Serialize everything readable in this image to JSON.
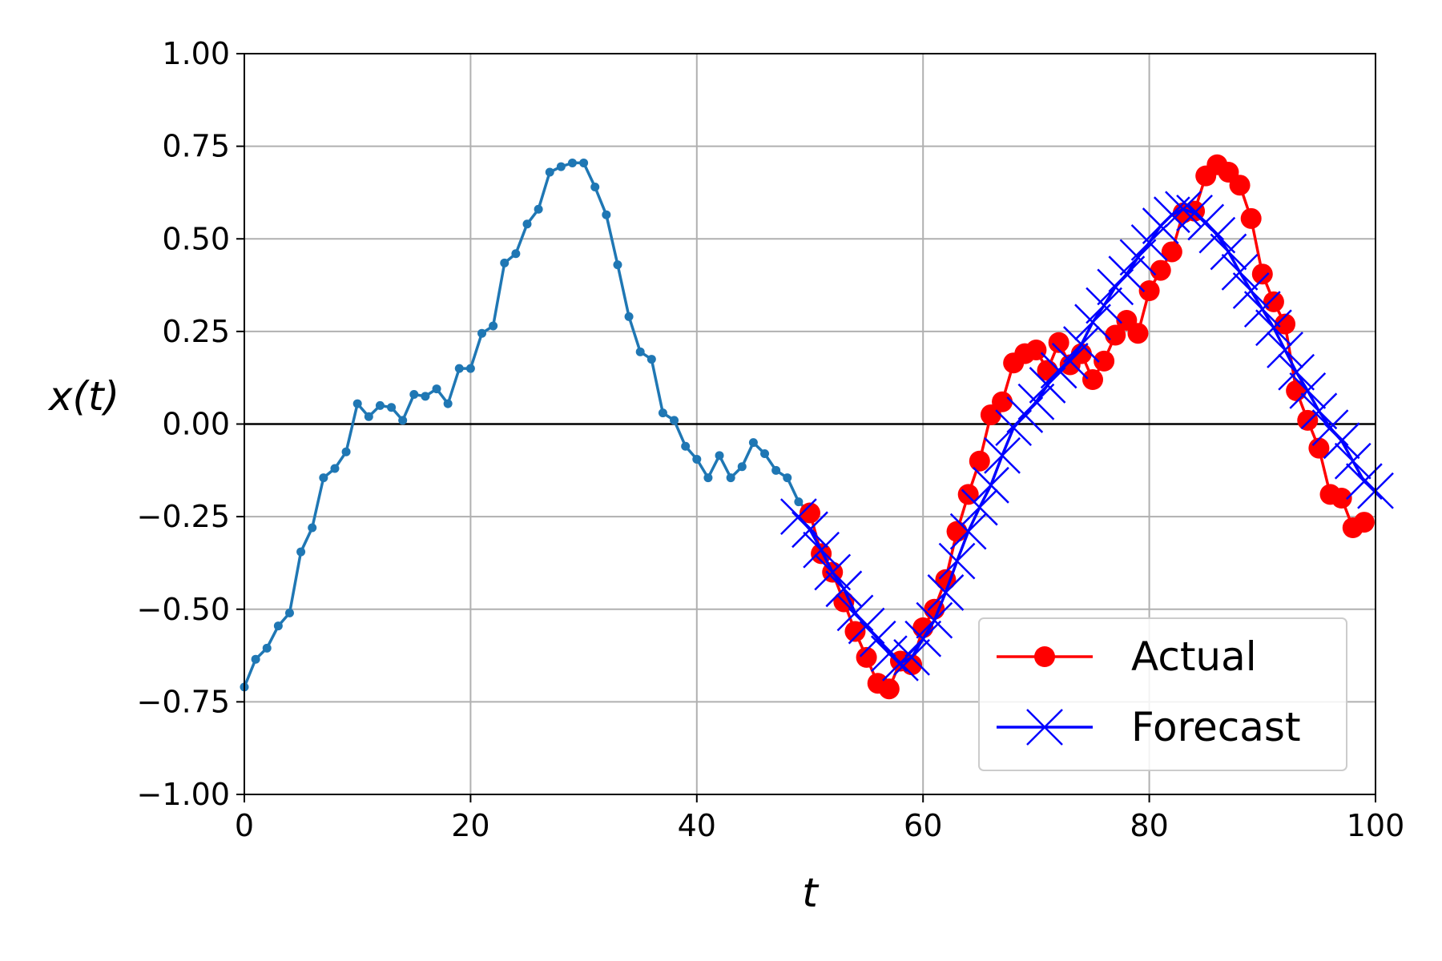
{
  "chart_data": {
    "type": "line",
    "title": "",
    "xlabel": "t",
    "ylabel": "x(t)",
    "xlim": [
      0,
      100
    ],
    "ylim": [
      -1,
      1
    ],
    "x_ticks": [
      0,
      20,
      40,
      60,
      80,
      100
    ],
    "x_tick_labels": [
      "0",
      "20",
      "40",
      "60",
      "80",
      "100"
    ],
    "y_ticks": [
      1,
      0.75,
      0.5,
      0.25,
      0,
      -0.25,
      -0.5,
      -0.75,
      -1
    ],
    "y_tick_labels": [
      "1.00",
      "0.75",
      "0.50",
      "0.25",
      "0.00",
      "−0.25",
      "−0.50",
      "−0.75",
      "−1.00"
    ],
    "grid": true,
    "zero_line": true,
    "legend_position": "lower-right",
    "series": [
      {
        "name": "",
        "role": "history",
        "color": "#1f77b4",
        "marker": "small-dot",
        "x": [
          0,
          1,
          2,
          3,
          4,
          5,
          6,
          7,
          8,
          9,
          10,
          11,
          12,
          13,
          14,
          15,
          16,
          17,
          18,
          19,
          20,
          21,
          22,
          23,
          24,
          25,
          26,
          27,
          28,
          29,
          30,
          31,
          32,
          33,
          34,
          35,
          36,
          37,
          38,
          39,
          40,
          41,
          42,
          43,
          44,
          45,
          46,
          47,
          48,
          49,
          50
        ],
        "y": [
          -0.71,
          -0.635,
          -0.605,
          -0.545,
          -0.51,
          -0.345,
          -0.28,
          -0.145,
          -0.12,
          -0.075,
          0.055,
          0.02,
          0.05,
          0.045,
          0.01,
          0.08,
          0.075,
          0.095,
          0.055,
          0.15,
          0.15,
          0.245,
          0.265,
          0.435,
          0.46,
          0.54,
          0.58,
          0.68,
          0.695,
          0.705,
          0.705,
          0.64,
          0.565,
          0.43,
          0.29,
          0.195,
          0.175,
          0.03,
          0.01,
          -0.06,
          -0.095,
          -0.145,
          -0.085,
          -0.145,
          -0.115,
          -0.05,
          -0.08,
          -0.125,
          -0.145,
          -0.21,
          -0.24
        ]
      },
      {
        "name": "Actual",
        "color": "#ff0000",
        "marker": "circle",
        "x": [
          50,
          51,
          52,
          53,
          54,
          55,
          56,
          57,
          58,
          59,
          60,
          61,
          62,
          63,
          64,
          65,
          66,
          67,
          68,
          69,
          70,
          71,
          72,
          73,
          74,
          75,
          76,
          77,
          78,
          79,
          80,
          81,
          82,
          83,
          84,
          85,
          86,
          87,
          88,
          89,
          90,
          91,
          92,
          93,
          94,
          95,
          96,
          97,
          98,
          99
        ],
        "y": [
          -0.24,
          -0.35,
          -0.4,
          -0.48,
          -0.56,
          -0.63,
          -0.7,
          -0.715,
          -0.64,
          -0.65,
          -0.55,
          -0.5,
          -0.42,
          -0.29,
          -0.19,
          -0.1,
          0.025,
          0.06,
          0.165,
          0.19,
          0.2,
          0.145,
          0.22,
          0.16,
          0.19,
          0.12,
          0.17,
          0.24,
          0.28,
          0.245,
          0.36,
          0.415,
          0.465,
          0.57,
          0.575,
          0.67,
          0.7,
          0.68,
          0.645,
          0.555,
          0.405,
          0.33,
          0.27,
          0.09,
          0.01,
          -0.065,
          -0.19,
          -0.2,
          -0.28,
          -0.265
        ]
      },
      {
        "name": "Forecast",
        "color": "#0000ff",
        "marker": "x",
        "x": [
          49,
          50,
          51,
          52,
          53,
          54,
          55,
          56,
          57,
          58,
          59,
          60,
          61,
          62,
          63,
          64,
          65,
          66,
          67,
          68,
          69,
          70,
          71,
          72,
          73,
          74,
          75,
          76,
          77,
          78,
          79,
          80,
          81,
          82,
          83,
          84,
          85,
          86,
          87,
          88,
          89,
          90,
          91,
          92,
          93,
          94,
          95,
          96,
          97,
          98,
          99,
          100
        ],
        "y": [
          -0.25,
          -0.285,
          -0.34,
          -0.4,
          -0.445,
          -0.51,
          -0.545,
          -0.58,
          -0.62,
          -0.645,
          -0.63,
          -0.58,
          -0.53,
          -0.455,
          -0.37,
          -0.29,
          -0.225,
          -0.165,
          -0.085,
          -0.01,
          0.025,
          0.06,
          0.105,
          0.145,
          0.17,
          0.215,
          0.275,
          0.32,
          0.37,
          0.405,
          0.45,
          0.49,
          0.535,
          0.565,
          0.58,
          0.57,
          0.545,
          0.51,
          0.465,
          0.41,
          0.36,
          0.31,
          0.26,
          0.2,
          0.14,
          0.09,
          0.035,
          -0.01,
          -0.045,
          -0.1,
          -0.155,
          -0.18
        ]
      }
    ]
  }
}
